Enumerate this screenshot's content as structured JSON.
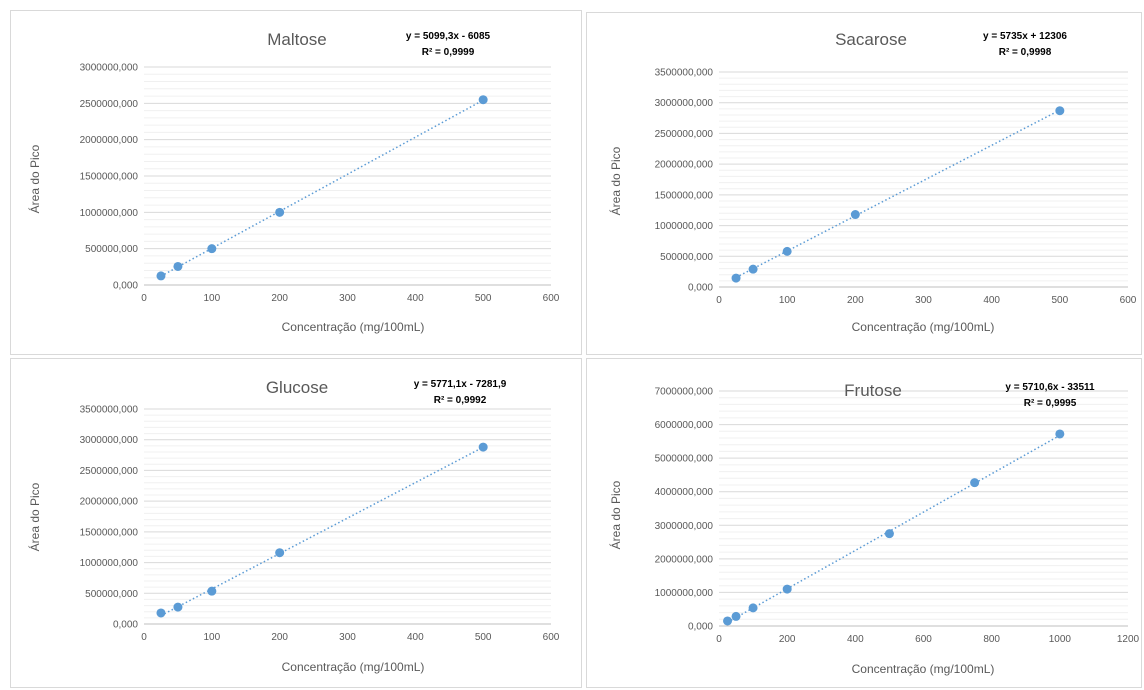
{
  "chart_data": [
    {
      "type": "scatter",
      "title": "Maltose",
      "equation": "y = 5099,3x - 6085",
      "r2": "R² = 0,9999",
      "xlabel": "Concentração (mg/100mL)",
      "ylabel": "Área do Pico",
      "xlim": [
        0,
        600
      ],
      "ylim": [
        0,
        3000000
      ],
      "x_ticks": [
        "0",
        "100",
        "200",
        "300",
        "400",
        "500",
        "600"
      ],
      "y_ticks": [
        "0,000",
        "500000,000",
        "1000000,000",
        "1500000,000",
        "2000000,000",
        "2500000,000",
        "3000000,000"
      ],
      "trendline": {
        "slope": 5099.3,
        "intercept": -6085
      },
      "points": [
        {
          "x": 25,
          "y": 125000
        },
        {
          "x": 50,
          "y": 255000
        },
        {
          "x": 100,
          "y": 500000
        },
        {
          "x": 200,
          "y": 1000000
        },
        {
          "x": 500,
          "y": 2550000
        }
      ],
      "color": "#5b9bd5"
    },
    {
      "type": "scatter",
      "title": "Sacarose",
      "equation": "y = 5735x + 12306",
      "r2": "R² = 0,9998",
      "xlabel": "Concentração (mg/100mL)",
      "ylabel": "Área do Pico",
      "xlim": [
        0,
        600
      ],
      "ylim": [
        0,
        3500000
      ],
      "x_ticks": [
        "0",
        "100",
        "200",
        "300",
        "400",
        "500",
        "600"
      ],
      "y_ticks": [
        "0,000",
        "500000,000",
        "1000000,000",
        "1500000,000",
        "2000000,000",
        "2500000,000",
        "3000000,000",
        "3500000,000"
      ],
      "trendline": {
        "slope": 5735,
        "intercept": 12306
      },
      "points": [
        {
          "x": 25,
          "y": 145000
        },
        {
          "x": 50,
          "y": 290000
        },
        {
          "x": 100,
          "y": 580000
        },
        {
          "x": 200,
          "y": 1180000
        },
        {
          "x": 500,
          "y": 2870000
        }
      ],
      "color": "#5b9bd5"
    },
    {
      "type": "scatter",
      "title": "Glucose",
      "equation": "y = 5771,1x - 7281,9",
      "r2": "R² = 0,9992",
      "xlabel": "Concentração (mg/100mL)",
      "ylabel": "Área do Pico",
      "xlim": [
        0,
        600
      ],
      "ylim": [
        0,
        3500000
      ],
      "x_ticks": [
        "0",
        "100",
        "200",
        "300",
        "400",
        "500",
        "600"
      ],
      "y_ticks": [
        "0,000",
        "500000,000",
        "1000000,000",
        "1500000,000",
        "2000000,000",
        "2500000,000",
        "3000000,000",
        "3500000,000"
      ],
      "trendline": {
        "slope": 5771.1,
        "intercept": -7281.9
      },
      "points": [
        {
          "x": 25,
          "y": 180000
        },
        {
          "x": 50,
          "y": 275000
        },
        {
          "x": 100,
          "y": 535000
        },
        {
          "x": 200,
          "y": 1160000
        },
        {
          "x": 500,
          "y": 2880000
        }
      ],
      "color": "#5b9bd5"
    },
    {
      "type": "scatter",
      "title": "Frutose",
      "equation": "y = 5710,6x - 33511",
      "r2": "R² = 0,9995",
      "xlabel": "Concentração (mg/100mL)",
      "ylabel": "Área do Pico",
      "xlim": [
        0,
        1200
      ],
      "ylim": [
        0,
        7000000
      ],
      "x_ticks": [
        "0",
        "200",
        "400",
        "600",
        "800",
        "1000",
        "1200"
      ],
      "y_ticks": [
        "0,000",
        "1000000,000",
        "2000000,000",
        "3000000,000",
        "4000000,000",
        "5000000,000",
        "6000000,000",
        "7000000,000"
      ],
      "trendline": {
        "slope": 5710.6,
        "intercept": -33511
      },
      "points": [
        {
          "x": 25,
          "y": 150000
        },
        {
          "x": 50,
          "y": 285000
        },
        {
          "x": 100,
          "y": 540000
        },
        {
          "x": 200,
          "y": 1100000
        },
        {
          "x": 500,
          "y": 2750000
        },
        {
          "x": 750,
          "y": 4270000
        },
        {
          "x": 1000,
          "y": 5720000
        }
      ],
      "color": "#5b9bd5"
    }
  ]
}
